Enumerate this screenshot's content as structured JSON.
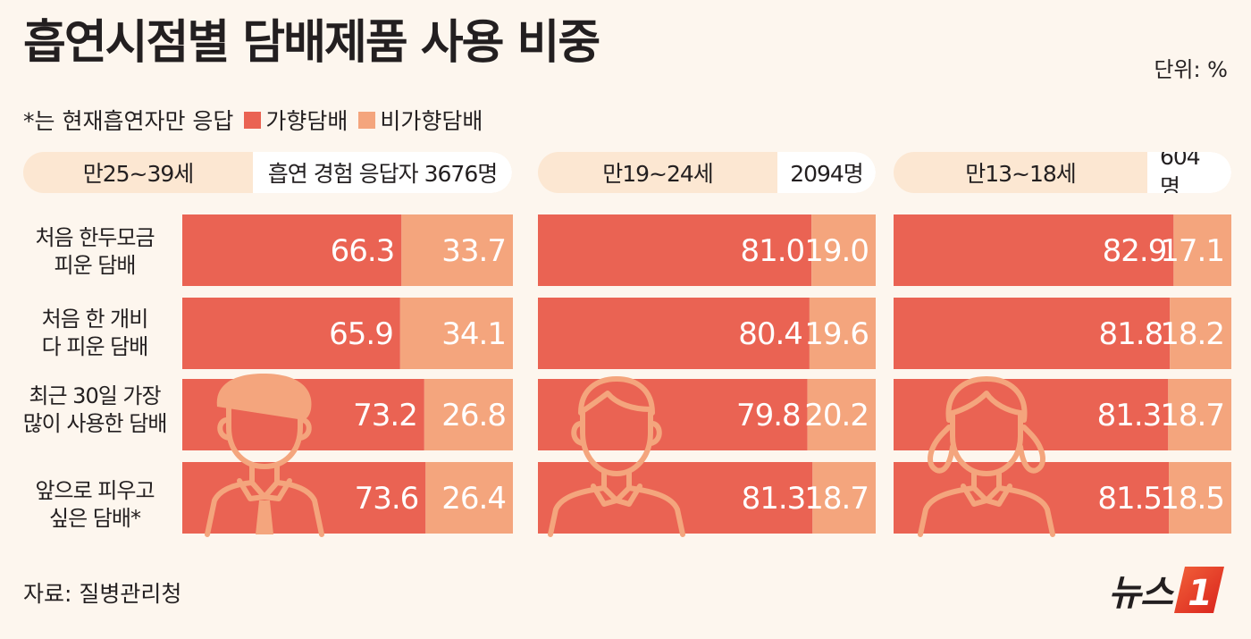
{
  "title": "흡연시점별 담배제품 사용 비중",
  "unit": "단위: %",
  "note": "*는 현재흡연자만 응답",
  "legend": [
    {
      "label": "가향담배",
      "color": "#ea6353"
    },
    {
      "label": "비가향담배",
      "color": "#f4a57d"
    }
  ],
  "source": "자료: 질병관리청",
  "logo": {
    "text": "뉴스",
    "mark": "1"
  },
  "row_labels": [
    [
      "처음 한두모금",
      "피운 담배"
    ],
    [
      "처음 한 개비",
      "다 피운 담배"
    ],
    [
      "최근 30일 가장",
      "많이 사용한 담배"
    ],
    [
      "앞으로 피우고",
      "싶은 담배*"
    ]
  ],
  "chart_data": [
    {
      "type": "bar",
      "stacked": true,
      "orientation": "horizontal",
      "group": "만25~39세",
      "respondents": "흡연 경험 응답자 3676명",
      "categories": [
        "처음 한두모금 피운 담배",
        "처음 한 개비 다 피운 담배",
        "최근 30일 가장 많이 사용한 담배",
        "앞으로 피우고 싶은 담배*"
      ],
      "series": [
        {
          "name": "가향담배",
          "values": [
            66.3,
            65.9,
            73.2,
            73.6
          ],
          "color": "#ea6353"
        },
        {
          "name": "비가향담배",
          "values": [
            33.7,
            34.1,
            26.8,
            26.4
          ],
          "color": "#f4a57d"
        }
      ],
      "xlim": [
        0,
        100
      ]
    },
    {
      "type": "bar",
      "stacked": true,
      "orientation": "horizontal",
      "group": "만19~24세",
      "respondents": "2094명",
      "categories": [
        "처음 한두모금 피운 담배",
        "처음 한 개비 다 피운 담배",
        "최근 30일 가장 많이 사용한 담배",
        "앞으로 피우고 싶은 담배*"
      ],
      "series": [
        {
          "name": "가향담배",
          "values": [
            81.0,
            80.4,
            79.8,
            81.3
          ],
          "color": "#ea6353"
        },
        {
          "name": "비가향담배",
          "values": [
            19.0,
            19.6,
            20.2,
            18.7
          ],
          "color": "#f4a57d"
        }
      ],
      "xlim": [
        0,
        100
      ]
    },
    {
      "type": "bar",
      "stacked": true,
      "orientation": "horizontal",
      "group": "만13~18세",
      "respondents": "604명",
      "categories": [
        "처음 한두모금 피운 담배",
        "처음 한 개비 다 피운 담배",
        "최근 30일 가장 많이 사용한 담배",
        "앞으로 피우고 싶은 담배*"
      ],
      "series": [
        {
          "name": "가향담배",
          "values": [
            82.9,
            81.8,
            81.3,
            81.5
          ],
          "color": "#ea6353"
        },
        {
          "name": "비가향담배",
          "values": [
            17.1,
            18.2,
            18.7,
            18.5
          ],
          "color": "#f4a57d"
        }
      ],
      "xlim": [
        0,
        100
      ]
    }
  ],
  "icons": [
    "man-figure-icon",
    "young-man-figure-icon",
    "girl-figure-icon"
  ]
}
